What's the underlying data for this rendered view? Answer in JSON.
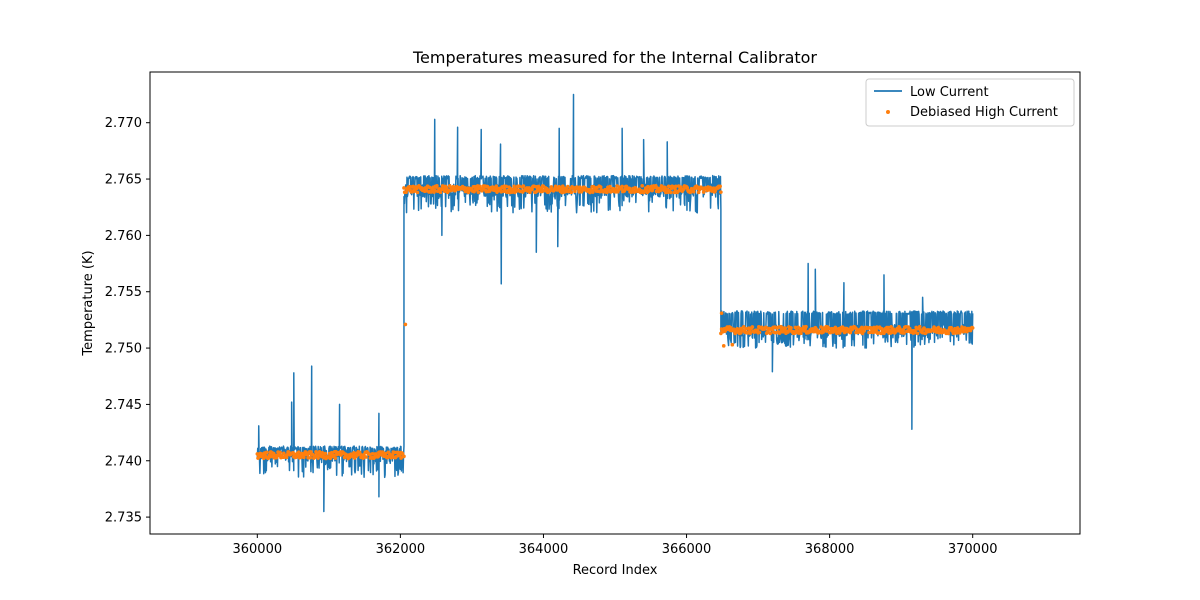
{
  "chart_data": {
    "type": "line",
    "title": "Temperatures measured for the Internal Calibrator",
    "xlabel": "Record Index",
    "ylabel": "Temperature (K)",
    "xlim": [
      358500,
      371500
    ],
    "ylim": [
      2.7335,
      2.7745
    ],
    "xticks": [
      360000,
      362000,
      364000,
      366000,
      368000,
      370000
    ],
    "xtick_labels": [
      "360000",
      "362000",
      "364000",
      "366000",
      "368000",
      "370000"
    ],
    "yticks": [
      2.735,
      2.74,
      2.745,
      2.75,
      2.755,
      2.76,
      2.765,
      2.77
    ],
    "ytick_labels": [
      "2.735",
      "2.740",
      "2.745",
      "2.750",
      "2.755",
      "2.760",
      "2.765",
      "2.770"
    ],
    "grid": false,
    "legend_position": "top-right",
    "series": [
      {
        "name": "Low Current",
        "kind": "line",
        "color": "#1f77b4",
        "segments": [
          {
            "x_start": 360000,
            "x_end": 362050,
            "level": 2.7405,
            "band_low": 2.7385,
            "band_high": 2.7413
          },
          {
            "x_start": 362050,
            "x_end": 366480,
            "level": 2.764,
            "band_low": 2.762,
            "band_high": 2.7653
          },
          {
            "x_start": 366480,
            "x_end": 370000,
            "level": 2.7515,
            "band_low": 2.75,
            "band_high": 2.7533
          }
        ],
        "spikes": [
          {
            "x": 360510,
            "y": 2.7478
          },
          {
            "x": 360480,
            "y": 2.7452
          },
          {
            "x": 360760,
            "y": 2.7484
          },
          {
            "x": 361150,
            "y": 2.745
          },
          {
            "x": 361700,
            "y": 2.7442
          },
          {
            "x": 360930,
            "y": 2.7355
          },
          {
            "x": 361700,
            "y": 2.7368
          },
          {
            "x": 360020,
            "y": 2.7431
          },
          {
            "x": 362480,
            "y": 2.7703
          },
          {
            "x": 362800,
            "y": 2.7696
          },
          {
            "x": 363130,
            "y": 2.7694
          },
          {
            "x": 363400,
            "y": 2.7681
          },
          {
            "x": 364220,
            "y": 2.7695
          },
          {
            "x": 364420,
            "y": 2.7725
          },
          {
            "x": 365100,
            "y": 2.7695
          },
          {
            "x": 365400,
            "y": 2.7685
          },
          {
            "x": 365730,
            "y": 2.7683
          },
          {
            "x": 363410,
            "y": 2.7557
          },
          {
            "x": 363900,
            "y": 2.7585
          },
          {
            "x": 364200,
            "y": 2.759
          },
          {
            "x": 362580,
            "y": 2.76
          },
          {
            "x": 366150,
            "y": 2.762
          },
          {
            "x": 367700,
            "y": 2.7575
          },
          {
            "x": 367800,
            "y": 2.757
          },
          {
            "x": 368200,
            "y": 2.7558
          },
          {
            "x": 368760,
            "y": 2.7565
          },
          {
            "x": 369150,
            "y": 2.7428
          },
          {
            "x": 367200,
            "y": 2.7479
          },
          {
            "x": 369300,
            "y": 2.7545
          }
        ]
      },
      {
        "name": "Debiased High Current",
        "kind": "scatter",
        "color": "#ff7f0e",
        "segments": [
          {
            "x_start": 360000,
            "x_end": 362050,
            "level": 2.7405
          },
          {
            "x_start": 362050,
            "x_end": 366480,
            "level": 2.7641
          },
          {
            "x_start": 366480,
            "x_end": 370000,
            "level": 2.7516
          }
        ],
        "outliers": [
          {
            "x": 362070,
            "y": 2.7521
          },
          {
            "x": 366490,
            "y": 2.7531
          },
          {
            "x": 366520,
            "y": 2.7502
          },
          {
            "x": 366640,
            "y": 2.7503
          }
        ]
      }
    ]
  }
}
